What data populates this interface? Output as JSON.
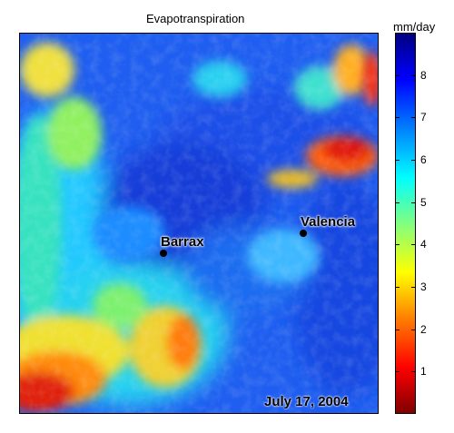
{
  "title": "Evapotranspiration",
  "date": "July 17, 2004",
  "places": [
    {
      "name": "Barrax"
    },
    {
      "name": "Valencia"
    }
  ],
  "colorbar": {
    "unit": "mm/day",
    "min": 0,
    "max": 9,
    "ticks": [
      "1",
      "2",
      "3",
      "4",
      "5",
      "6",
      "7",
      "8"
    ],
    "colormap": "jet"
  }
}
